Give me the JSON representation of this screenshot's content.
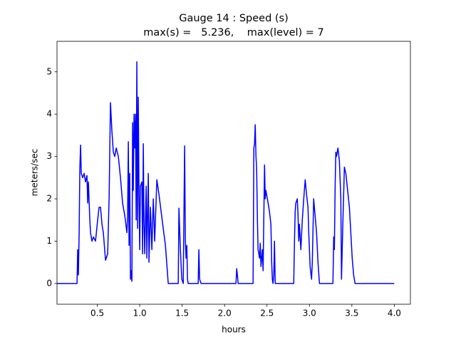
{
  "chart_data": {
    "type": "line",
    "title": "Gauge 14 : Speed (s)",
    "subtitle": "max(s) =   5.236,    max(level) = 7",
    "x_label": "hours",
    "y_label": "meters/sec",
    "xlim": [
      0.025,
      4.19
    ],
    "ylim": [
      -0.49,
      5.72
    ],
    "xticks": [
      0.5,
      {
        "value": 1,
        "label": "1.0"
      },
      1.5,
      {
        "value": 2,
        "label": "2.0"
      },
      2.5,
      {
        "value": 3,
        "label": "3.0"
      },
      3.5,
      {
        "value": 4,
        "label": "4.0"
      }
    ],
    "yticks": [
      0,
      1,
      2,
      3,
      4,
      5
    ],
    "x": [
      0.025,
      0.261,
      0.269,
      0.277,
      0.286,
      0.294,
      0.303,
      0.311,
      0.328,
      0.345,
      0.361,
      0.378,
      0.387,
      0.395,
      0.412,
      0.42,
      0.437,
      0.454,
      0.479,
      0.504,
      0.521,
      0.538,
      0.555,
      0.571,
      0.597,
      0.622,
      0.639,
      0.655,
      0.672,
      0.689,
      0.706,
      0.723,
      0.748,
      0.773,
      0.798,
      0.824,
      0.849,
      0.857,
      0.866,
      0.874,
      0.882,
      0.891,
      0.899,
      0.908,
      0.916,
      0.924,
      0.933,
      0.941,
      0.95,
      0.958,
      0.966,
      0.975,
      0.983,
      0.992,
      1.0,
      1.008,
      1.025,
      1.034,
      1.042,
      1.05,
      1.059,
      1.076,
      1.084,
      1.101,
      1.109,
      1.126,
      1.143,
      1.16,
      1.176,
      1.185,
      1.202,
      1.227,
      1.252,
      1.277,
      1.303,
      1.336,
      1.454,
      1.462,
      1.479,
      1.496,
      1.513,
      1.529,
      1.538,
      1.546,
      1.555,
      1.563,
      1.571,
      1.689,
      1.697,
      1.706,
      1.723,
      2.134,
      2.143,
      2.151,
      2.16,
      2.336,
      2.345,
      2.353,
      2.361,
      2.37,
      2.378,
      2.387,
      2.395,
      2.412,
      2.42,
      2.429,
      2.445,
      2.454,
      2.462,
      2.471,
      2.479,
      2.487,
      2.513,
      2.529,
      2.546,
      2.555,
      2.563,
      2.571,
      2.58,
      2.588,
      2.597,
      2.815,
      2.824,
      2.832,
      2.84,
      2.857,
      2.866,
      2.874,
      2.882,
      2.899,
      2.916,
      2.933,
      2.95,
      2.966,
      2.983,
      2.992,
      3.008,
      3.025,
      3.034,
      3.05,
      3.067,
      3.084,
      3.101,
      3.118,
      3.277,
      3.286,
      3.294,
      3.303,
      3.311,
      3.319,
      3.336,
      3.353,
      3.37,
      3.378,
      3.395,
      3.412,
      3.429,
      3.445,
      3.471,
      3.496,
      3.504,
      3.521,
      3.538,
      4.0
    ],
    "series": [
      {
        "color": "#0000ff",
        "values": [
          0,
          0,
          0.8,
          0.2,
          1.2,
          2.7,
          3.27,
          2.6,
          2.5,
          2.6,
          2.4,
          2.55,
          1.9,
          2.4,
          1.5,
          1.2,
          1.0,
          1.1,
          1.0,
          1.5,
          1.8,
          1.8,
          1.4,
          1.2,
          0.55,
          0.7,
          2.0,
          4.27,
          3.6,
          3.1,
          3.0,
          3.2,
          3.0,
          2.5,
          1.9,
          1.6,
          1.2,
          1.6,
          3.35,
          0.9,
          2.6,
          0.1,
          0.3,
          0.05,
          3.8,
          2.2,
          4.0,
          3.2,
          4.0,
          1.5,
          5.236,
          1.3,
          4.4,
          2.0,
          0.8,
          2.3,
          2.4,
          0.7,
          3.3,
          1.5,
          0.7,
          2.3,
          0.6,
          2.6,
          0.5,
          1.8,
          0.8,
          2.0,
          1.0,
          1.5,
          2.45,
          2.1,
          1.7,
          1.3,
          0.9,
          0,
          0,
          1.78,
          0.8,
          0.1,
          0,
          3.25,
          1.0,
          0.6,
          0.9,
          0.1,
          0,
          0,
          0.8,
          0.1,
          0,
          0,
          0.35,
          0.2,
          0,
          0,
          3.2,
          3.3,
          3.75,
          3.0,
          2.7,
          1.5,
          0.8,
          0.6,
          0.95,
          0.4,
          0.8,
          0.3,
          1.5,
          2.8,
          2.0,
          2.2,
          1.9,
          1.7,
          1.4,
          0.5,
          0.1,
          0,
          0.2,
          1.0,
          0,
          0,
          1.0,
          1.7,
          1.9,
          2.0,
          1.6,
          1.0,
          1.4,
          0.8,
          1.5,
          2.0,
          2.45,
          2.1,
          1.8,
          1.2,
          0.4,
          0.1,
          0.5,
          2.0,
          1.6,
          1.2,
          0.5,
          0,
          0,
          1.1,
          0.8,
          2.3,
          3.1,
          3.0,
          3.2,
          2.9,
          2.0,
          0.1,
          1.5,
          2.75,
          2.6,
          2.3,
          1.8,
          0.9,
          0.6,
          0.2,
          0,
          0
        ]
      }
    ]
  }
}
